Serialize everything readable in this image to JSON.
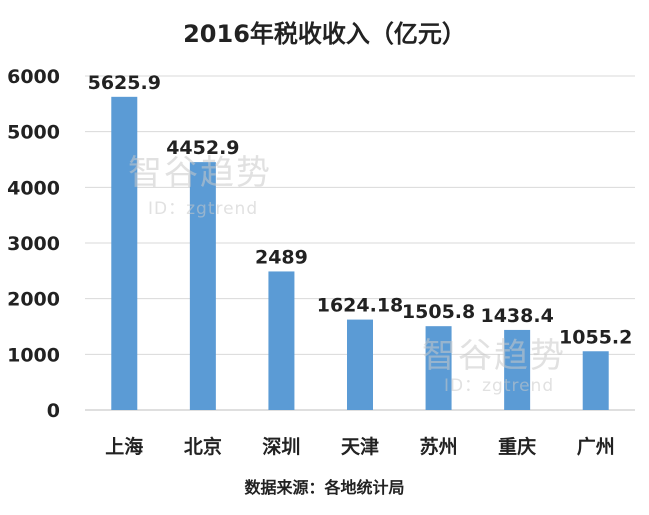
{
  "chart_data": {
    "type": "bar",
    "title": "2016年税收收入（亿元）",
    "categories": [
      "上海",
      "北京",
      "深圳",
      "天津",
      "苏州",
      "重庆",
      "广州"
    ],
    "values": [
      5625.9,
      4452.9,
      2489,
      1624.18,
      1505.8,
      1438.4,
      1055.2
    ],
    "value_labels": [
      "5625.9",
      "4452.9",
      "2489",
      "1624.18",
      "1505.8",
      "1438.4",
      "1055.2"
    ],
    "ylim": [
      0,
      6000
    ],
    "yticks": [
      "0",
      "1000",
      "2000",
      "3000",
      "4000",
      "5000",
      "6000"
    ],
    "grid": true,
    "bar_color": "#5b9bd5",
    "source": "数据来源：各地统计局"
  },
  "watermark": {
    "text": "智谷趋势",
    "id_text": "ID：zgtrend"
  }
}
